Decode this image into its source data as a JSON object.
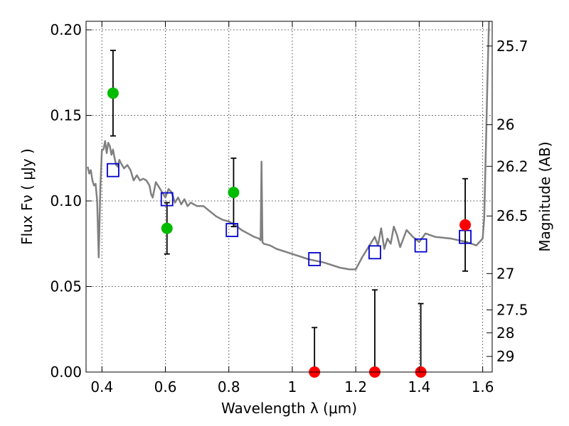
{
  "chart_data": {
    "type": "scatter",
    "xlabel": "Wavelength  λ (μm)",
    "ylabel": "Flux  Fν  ( μJy )",
    "y2label": "Magnitude (AB)",
    "xlim": [
      0.35,
      1.63
    ],
    "ylim": [
      0.0,
      0.205
    ],
    "grid": true,
    "x_ticks": [
      {
        "value": 0.4,
        "label": "0.4"
      },
      {
        "value": 0.6,
        "label": "0.6"
      },
      {
        "value": 0.8,
        "label": "0.8"
      },
      {
        "value": 1.0,
        "label": "1"
      },
      {
        "value": 1.2,
        "label": "1.2"
      },
      {
        "value": 1.4,
        "label": "1.4"
      },
      {
        "value": 1.6,
        "label": "1.6"
      }
    ],
    "y_ticks": [
      {
        "value": 0.0,
        "label": "0.00"
      },
      {
        "value": 0.05,
        "label": "0.05"
      },
      {
        "value": 0.1,
        "label": "0.10"
      },
      {
        "value": 0.15,
        "label": "0.15"
      },
      {
        "value": 0.2,
        "label": "0.20"
      }
    ],
    "mag_ticks": [
      {
        "value": 25.7,
        "label": "25.7"
      },
      {
        "value": 26.0,
        "label": "26"
      },
      {
        "value": 26.2,
        "label": "26.2"
      },
      {
        "value": 26.5,
        "label": "26.5"
      },
      {
        "value": 27.0,
        "label": "27"
      },
      {
        "value": 27.5,
        "label": "27.5"
      },
      {
        "value": 28.0,
        "label": "28"
      },
      {
        "value": 29.0,
        "label": "29"
      }
    ],
    "series": [
      {
        "kind": "spectrum",
        "color": "#808080",
        "x": [
          0.355,
          0.36,
          0.365,
          0.37,
          0.375,
          0.38,
          0.385,
          0.39,
          0.395,
          0.4,
          0.405,
          0.41,
          0.415,
          0.42,
          0.425,
          0.43,
          0.435,
          0.44,
          0.445,
          0.45,
          0.455,
          0.46,
          0.47,
          0.48,
          0.49,
          0.5,
          0.51,
          0.52,
          0.53,
          0.54,
          0.55,
          0.555,
          0.56,
          0.57,
          0.58,
          0.59,
          0.6,
          0.61,
          0.62,
          0.63,
          0.64,
          0.65,
          0.66,
          0.67,
          0.68,
          0.7,
          0.72,
          0.74,
          0.76,
          0.78,
          0.8,
          0.82,
          0.84,
          0.86,
          0.88,
          0.895,
          0.9,
          0.903,
          0.906,
          0.91,
          0.93,
          0.95,
          1.0,
          1.05,
          1.1,
          1.15,
          1.18,
          1.2,
          1.22,
          1.24,
          1.26,
          1.27,
          1.28,
          1.29,
          1.3,
          1.31,
          1.32,
          1.33,
          1.34,
          1.36,
          1.38,
          1.4,
          1.42,
          1.45,
          1.5,
          1.55,
          1.58,
          1.6,
          1.605,
          1.61,
          1.615,
          1.62
        ],
        "y": [
          0.12,
          0.116,
          0.118,
          0.112,
          0.109,
          0.11,
          0.1,
          0.067,
          0.108,
          0.13,
          0.13,
          0.135,
          0.128,
          0.134,
          0.132,
          0.127,
          0.13,
          0.125,
          0.121,
          0.12,
          0.124,
          0.122,
          0.119,
          0.121,
          0.118,
          0.112,
          0.115,
          0.112,
          0.113,
          0.112,
          0.109,
          0.104,
          0.102,
          0.111,
          0.108,
          0.105,
          0.102,
          0.107,
          0.105,
          0.099,
          0.102,
          0.098,
          0.101,
          0.097,
          0.099,
          0.097,
          0.097,
          0.094,
          0.091,
          0.089,
          0.088,
          0.086,
          0.083,
          0.081,
          0.079,
          0.078,
          0.077,
          0.123,
          0.076,
          0.075,
          0.074,
          0.072,
          0.069,
          0.066,
          0.064,
          0.061,
          0.06,
          0.06,
          0.067,
          0.073,
          0.079,
          0.074,
          0.084,
          0.072,
          0.078,
          0.075,
          0.085,
          0.08,
          0.073,
          0.083,
          0.079,
          0.076,
          0.081,
          0.079,
          0.078,
          0.076,
          0.074,
          0.078,
          0.09,
          0.13,
          0.17,
          0.206
        ]
      },
      {
        "kind": "model-photometry",
        "marker": "open-square",
        "color": "#0000cc",
        "x": [
          0.435,
          0.605,
          0.81,
          1.07,
          1.26,
          1.405,
          1.545
        ],
        "y": [
          0.118,
          0.101,
          0.083,
          0.066,
          0.07,
          0.074,
          0.079
        ]
      },
      {
        "kind": "observed-optical",
        "marker": "filled-circle",
        "color": "#00bb00",
        "x": [
          0.435,
          0.605,
          0.815
        ],
        "y": [
          0.163,
          0.084,
          0.105
        ],
        "err": [
          0.025,
          0.015,
          0.02
        ]
      },
      {
        "kind": "observed-nir",
        "marker": "filled-circle",
        "color": "#ff0000",
        "x": [
          1.07,
          1.26,
          1.405,
          1.545
        ],
        "y": [
          0.0,
          0.0,
          0.0,
          0.086
        ],
        "err": [
          0.026,
          0.048,
          0.04,
          0.027
        ]
      }
    ]
  }
}
